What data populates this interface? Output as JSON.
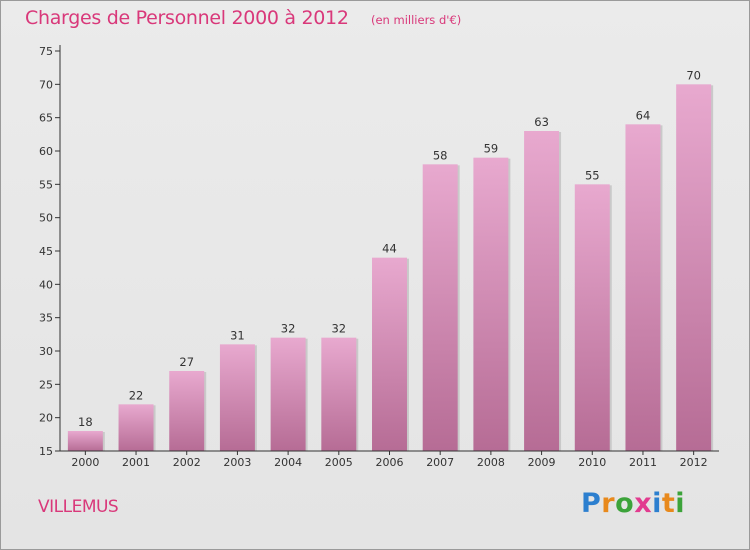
{
  "header": {
    "title": "Charges de Personnel 2000 à 2012",
    "subtitle": "(en milliers d'€)"
  },
  "footer": {
    "commune": "VILLEMUS",
    "brand": "Proxiti"
  },
  "colors": {
    "accent": "#d9387a",
    "bar_top": "#e8a9cf",
    "bar_bottom": "#b66c95"
  },
  "chart_data": {
    "type": "bar",
    "title": "Charges de Personnel 2000 à 2012",
    "subtitle": "(en milliers d'€)",
    "xlabel": "",
    "ylabel": "",
    "categories": [
      "2000",
      "2001",
      "2002",
      "2003",
      "2004",
      "2005",
      "2006",
      "2007",
      "2008",
      "2009",
      "2010",
      "2011",
      "2012"
    ],
    "values": [
      18,
      22,
      27,
      31,
      32,
      32,
      44,
      58,
      59,
      63,
      55,
      64,
      70
    ],
    "ylim": [
      15,
      75
    ],
    "yticks": [
      15,
      20,
      25,
      30,
      35,
      40,
      45,
      50,
      55,
      60,
      65,
      70,
      75
    ],
    "grid": false,
    "legend": "none",
    "data_labels": true
  }
}
